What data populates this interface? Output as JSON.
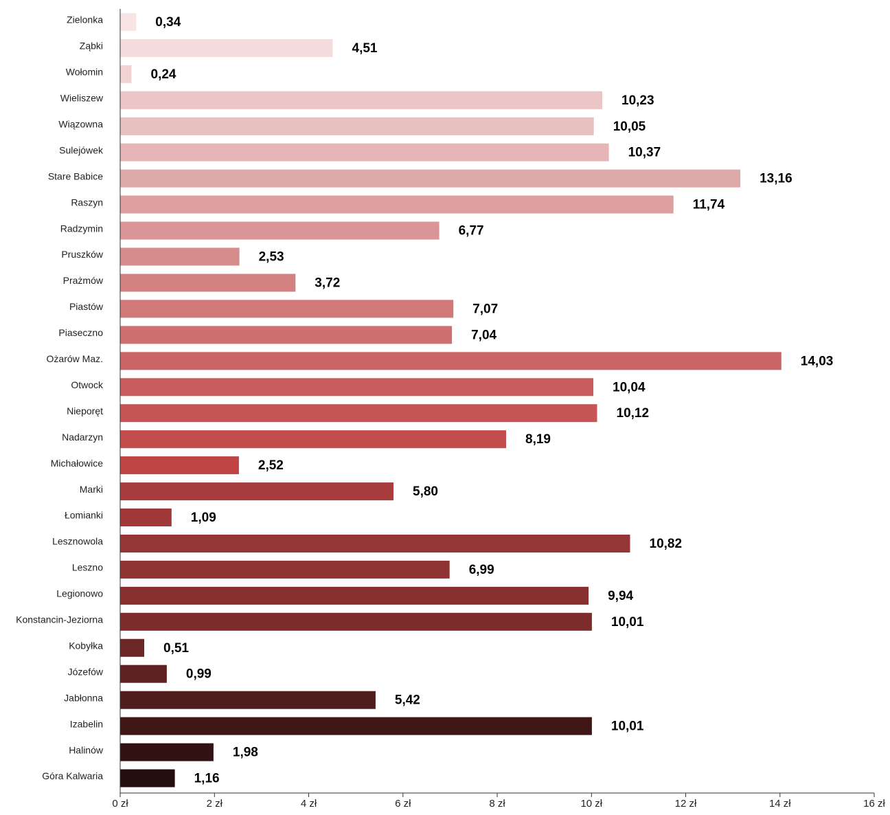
{
  "chart_data": {
    "type": "bar",
    "orientation": "horizontal",
    "categories": [
      "Zielonka",
      "Ząbki",
      "Wołomin",
      "Wieliszew",
      "Wiązowna",
      "Sulejówek",
      "Stare Babice",
      "Raszyn",
      "Radzymin",
      "Pruszków",
      "Prażmów",
      "Piastów",
      "Piaseczno",
      "Ożarów Maz.",
      "Otwock",
      "Nieporęt",
      "Nadarzyn",
      "Michałowice",
      "Marki",
      "Łomianki",
      "Lesznowola",
      "Leszno",
      "Legionowo",
      "Konstancin-Jeziorna",
      "Kobyłka",
      "Józefów",
      "Jabłonna",
      "Izabelin",
      "Halinów",
      "Góra Kalwaria"
    ],
    "values": [
      0.34,
      4.51,
      0.24,
      10.23,
      10.05,
      10.37,
      13.16,
      11.74,
      6.77,
      2.53,
      3.72,
      7.07,
      7.04,
      14.03,
      10.04,
      10.12,
      8.19,
      2.52,
      5.8,
      1.09,
      10.82,
      6.99,
      9.94,
      10.01,
      0.51,
      0.99,
      5.42,
      10.01,
      1.98,
      1.16
    ],
    "value_labels": [
      "0,34",
      "4,51",
      "0,24",
      "10,23",
      "10,05",
      "10,37",
      "13,16",
      "11,74",
      "6,77",
      "2,53",
      "3,72",
      "7,07",
      "7,04",
      "14,03",
      "10,04",
      "10,12",
      "8,19",
      "2,52",
      "5,80",
      "1,09",
      "10,82",
      "6,99",
      "9,94",
      "10,01",
      "0,51",
      "0,99",
      "5,42",
      "10,01",
      "1,98",
      "1,16"
    ],
    "colors": [
      "#f7e4e4",
      "#f4dcdc",
      "#f1d3d3",
      "#ecc6c6",
      "#e9c0c0",
      "#e6b6b6",
      "#e0a9a9",
      "#dd9f9f",
      "#da9696",
      "#d78c8c",
      "#d48181",
      "#d17979",
      "#ce7070",
      "#cb6565",
      "#c85c5c",
      "#c65555",
      "#c34c4c",
      "#c04444",
      "#a83d3d",
      "#9f3939",
      "#963535",
      "#8f3333",
      "#873030",
      "#7d2c2c",
      "#6b2626",
      "#5e2222",
      "#4e1c1c",
      "#3f1717",
      "#321212",
      "#240e0e"
    ],
    "x_ticks": [
      0,
      2,
      4,
      6,
      8,
      10,
      12,
      14,
      16
    ],
    "x_tick_labels": [
      "0 zł",
      "2 zł",
      "4 zł",
      "6 zł",
      "8 zł",
      "10 zł",
      "12 zł",
      "14 zł",
      "16 zł"
    ],
    "xlim": [
      0,
      16
    ],
    "grid": false,
    "legend": "none",
    "title": "",
    "xlabel": "",
    "ylabel": ""
  }
}
